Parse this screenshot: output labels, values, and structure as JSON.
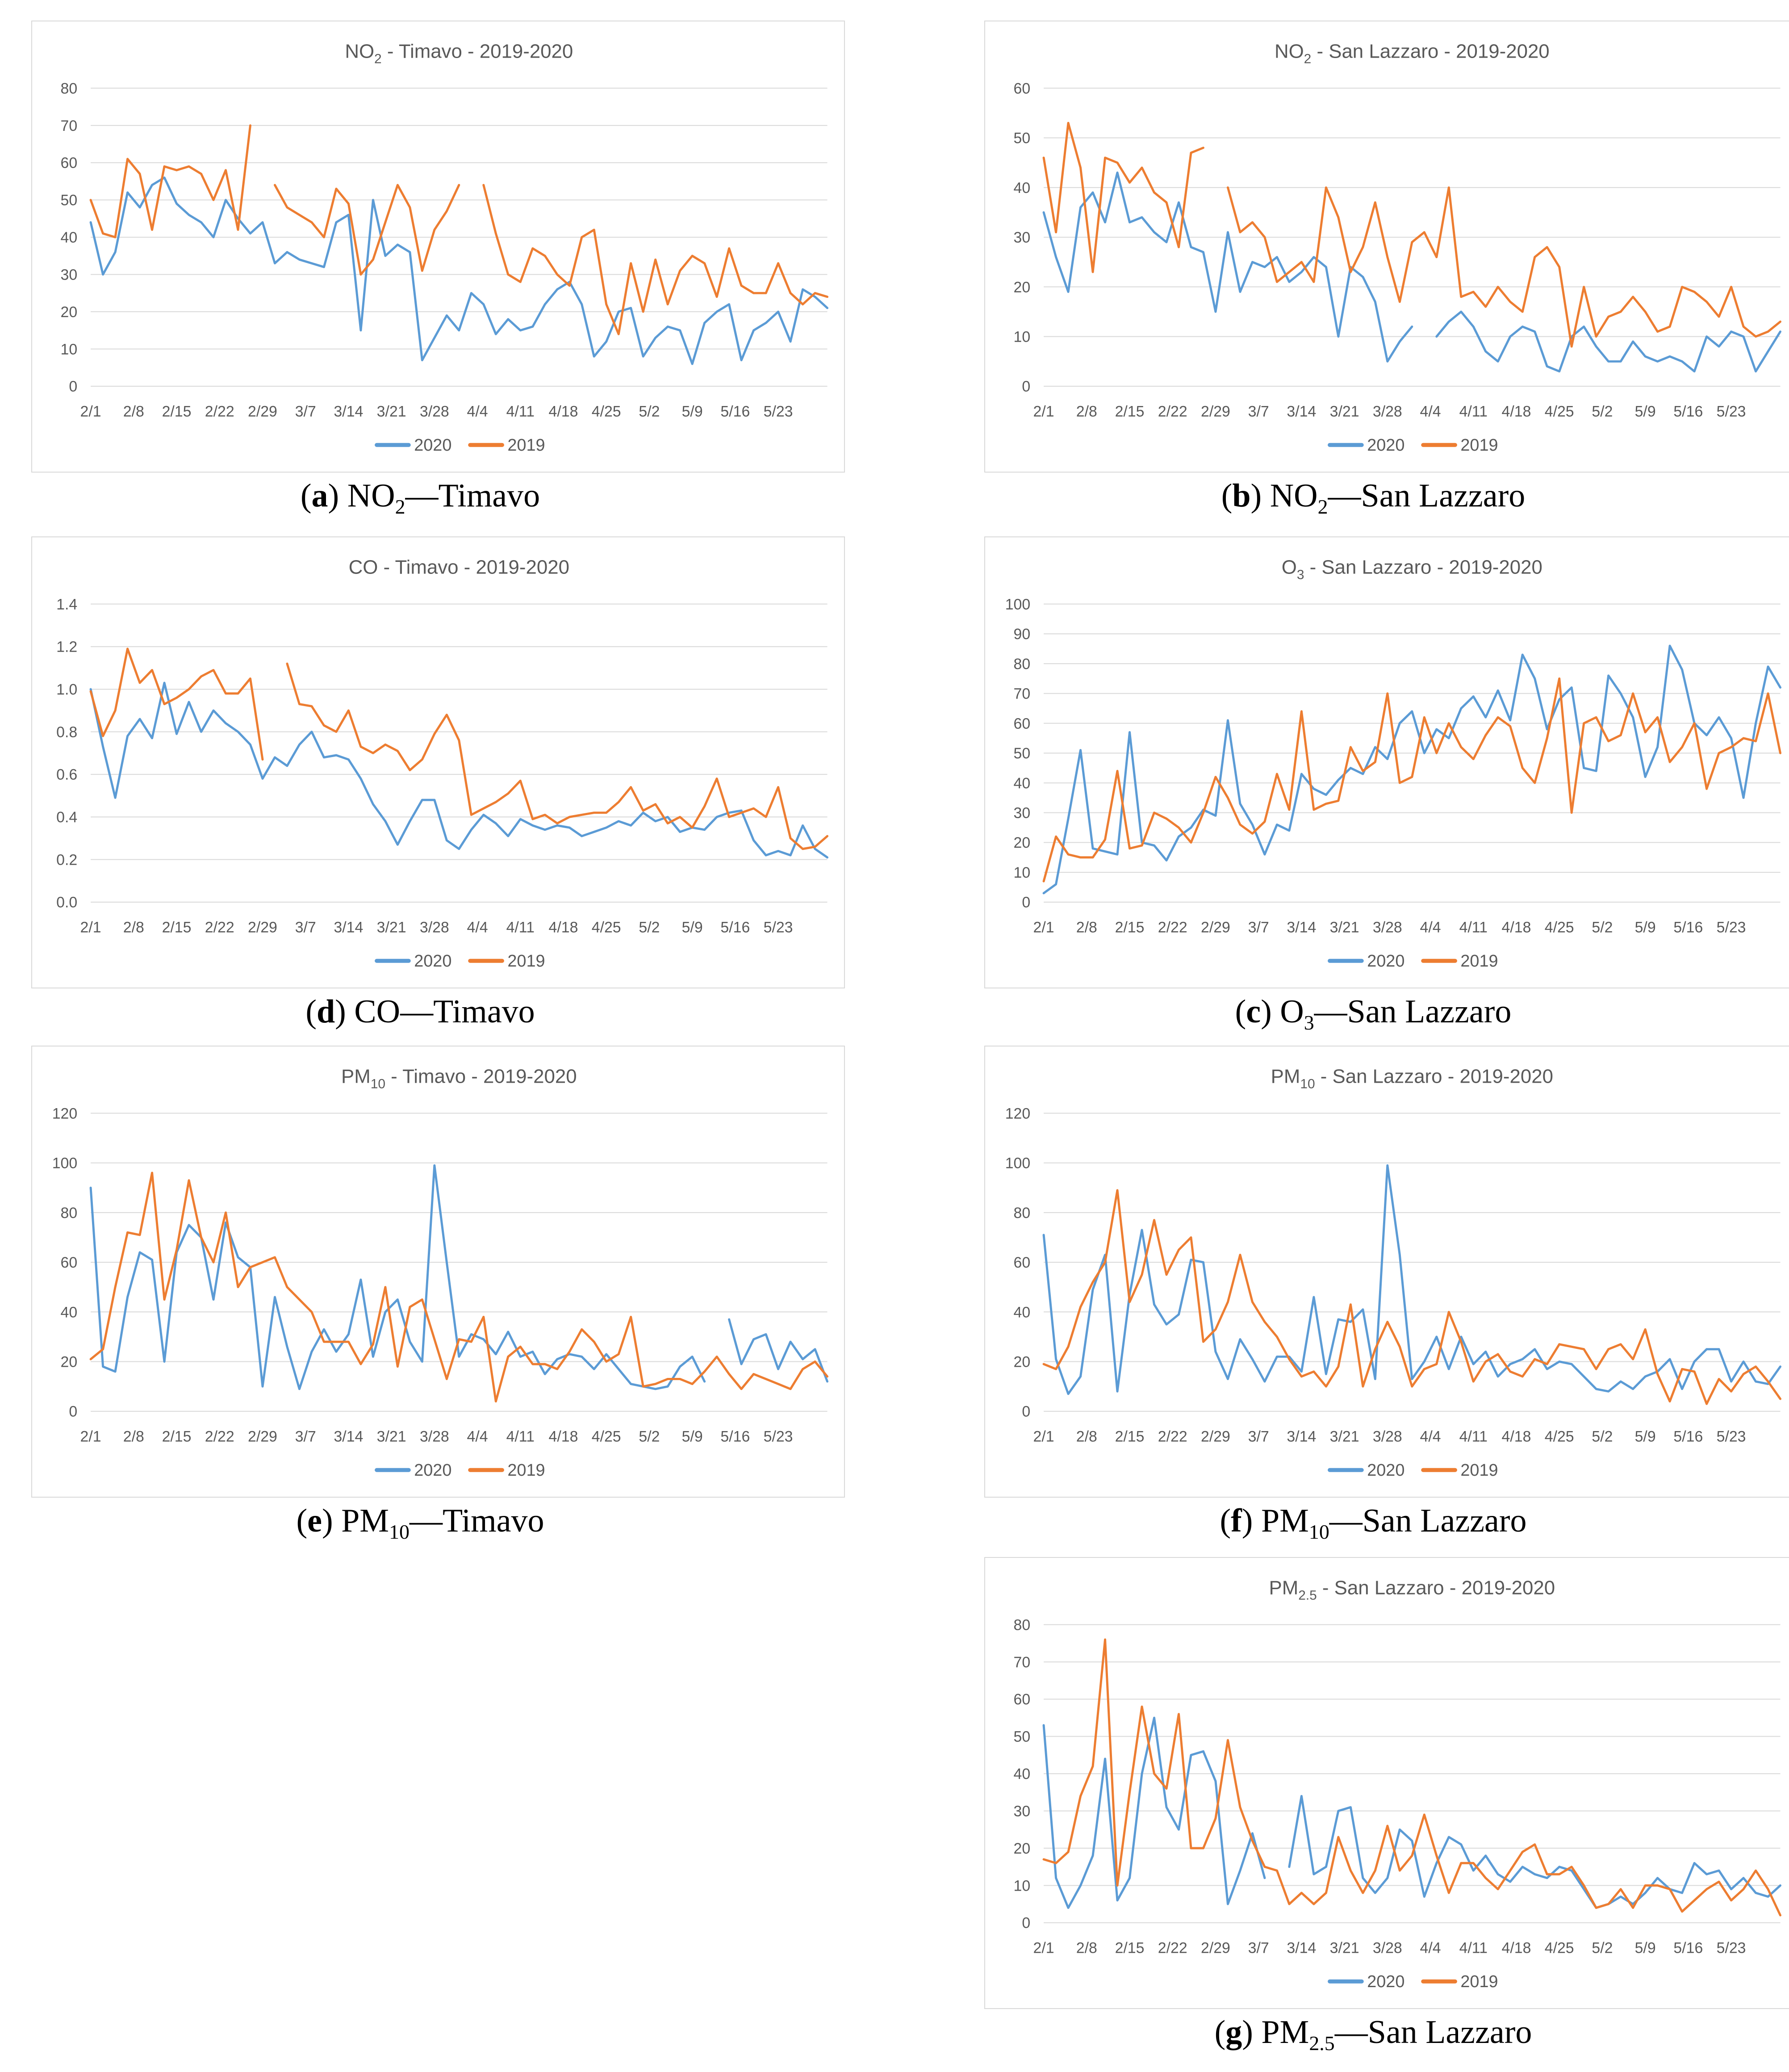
{
  "symbols": {
    "paren_open": "(",
    "paren_close": ") ",
    "dash": "—"
  },
  "colors": {
    "series_2020": "#5B9BD5",
    "series_2019": "#ED7D31",
    "title_text": "#595959",
    "tick_text": "#595959",
    "gridline": "#D9D9D9",
    "panel_border": "#D9D9D9"
  },
  "legend": {
    "labels": [
      "2020",
      "2019"
    ]
  },
  "x_axis": {
    "tick_labels": [
      "2/1",
      "2/8",
      "2/15",
      "2/22",
      "2/29",
      "3/7",
      "3/14",
      "3/21",
      "3/28",
      "4/4",
      "4/11",
      "4/18",
      "4/25",
      "5/2",
      "5/9",
      "5/16",
      "5/23"
    ],
    "tick_step_days": 7,
    "domain_days": 120,
    "start_date": "2/1",
    "end_date": "5/31"
  },
  "sample_step_days": 2,
  "chart_data": [
    {
      "id": "a",
      "type": "line",
      "title": {
        "base": "NO",
        "sub": "2",
        "rest": " - Timavo - 2019-2020"
      },
      "caption": {
        "letter": "a",
        "base": "NO",
        "sub": "2",
        "station": "Timavo"
      },
      "ylim": [
        0,
        80
      ],
      "y_step": 10,
      "y_decimals": 0,
      "grid": true,
      "legend_position": "bottom",
      "series": [
        {
          "name": "2020",
          "values": [
            44,
            30,
            36,
            52,
            48,
            54,
            56,
            49,
            46,
            44,
            40,
            50,
            45,
            41,
            44,
            33,
            36,
            34,
            33,
            32,
            44,
            46,
            15,
            50,
            35,
            38,
            36,
            7,
            13,
            19,
            15,
            25,
            22,
            14,
            18,
            15,
            16,
            22,
            26,
            28,
            22,
            8,
            12,
            20,
            21,
            8,
            13,
            16,
            15,
            6,
            17,
            20,
            22,
            7,
            15,
            17,
            20,
            12,
            26,
            24,
            21
          ]
        },
        {
          "name": "2019",
          "values": [
            50,
            41,
            40,
            61,
            57,
            42,
            59,
            58,
            59,
            57,
            50,
            58,
            42,
            70,
            null,
            54,
            48,
            46,
            44,
            40,
            53,
            49,
            30,
            34,
            44,
            54,
            48,
            31,
            42,
            47,
            54,
            null,
            54,
            41,
            30,
            28,
            37,
            35,
            30,
            27,
            40,
            42,
            22,
            14,
            33,
            20,
            34,
            22,
            31,
            35,
            33,
            24,
            37,
            27,
            25,
            25,
            33,
            25,
            22,
            25,
            24
          ]
        }
      ]
    },
    {
      "id": "b",
      "type": "line",
      "title": {
        "base": "NO",
        "sub": "2",
        "rest": " - San Lazzaro - 2019-2020"
      },
      "caption": {
        "letter": "b",
        "base": "NO",
        "sub": "2",
        "station": "San Lazzaro"
      },
      "ylim": [
        0,
        60
      ],
      "y_step": 10,
      "y_decimals": 0,
      "grid": true,
      "legend_position": "bottom",
      "series": [
        {
          "name": "2020",
          "values": [
            35,
            26,
            19,
            36,
            39,
            33,
            43,
            33,
            34,
            31,
            29,
            37,
            28,
            27,
            15,
            31,
            19,
            25,
            24,
            26,
            21,
            23,
            26,
            24,
            10,
            24,
            22,
            17,
            5,
            9,
            12,
            null,
            10,
            13,
            15,
            12,
            7,
            5,
            10,
            12,
            11,
            4,
            3,
            10,
            12,
            8,
            5,
            5,
            9,
            6,
            5,
            6,
            5,
            3,
            10,
            8,
            11,
            10,
            3,
            7,
            11
          ]
        },
        {
          "name": "2019",
          "values": [
            46,
            31,
            53,
            44,
            23,
            46,
            45,
            41,
            44,
            39,
            37,
            28,
            47,
            48,
            null,
            40,
            31,
            33,
            30,
            21,
            23,
            25,
            21,
            40,
            34,
            23,
            28,
            37,
            26,
            17,
            29,
            31,
            26,
            40,
            18,
            19,
            16,
            20,
            17,
            15,
            26,
            28,
            24,
            8,
            20,
            10,
            14,
            15,
            18,
            15,
            11,
            12,
            20,
            19,
            17,
            14,
            20,
            12,
            10,
            11,
            13
          ]
        }
      ]
    },
    {
      "id": "d",
      "type": "line",
      "title": {
        "base": "CO",
        "sub": "",
        "rest": " - Timavo - 2019-2020"
      },
      "caption": {
        "letter": "d",
        "base": "CO",
        "sub": "",
        "station": "Timavo"
      },
      "ylim": [
        0,
        1.4
      ],
      "y_step": 0.2,
      "y_decimals": 1,
      "grid": true,
      "legend_position": "bottom",
      "series": [
        {
          "name": "2020",
          "values": [
            1.0,
            0.73,
            0.49,
            0.78,
            0.86,
            0.77,
            1.03,
            0.79,
            0.94,
            0.8,
            0.9,
            0.84,
            0.8,
            0.74,
            0.58,
            0.68,
            0.64,
            0.74,
            0.8,
            0.68,
            0.69,
            0.67,
            0.58,
            0.46,
            0.38,
            0.27,
            0.38,
            0.48,
            0.48,
            0.29,
            0.25,
            0.34,
            0.41,
            0.37,
            0.31,
            0.39,
            0.36,
            0.34,
            0.36,
            0.35,
            0.31,
            0.33,
            0.35,
            0.38,
            0.36,
            0.42,
            0.38,
            0.4,
            0.33,
            0.35,
            0.34,
            0.4,
            0.42,
            0.43,
            0.29,
            0.22,
            0.24,
            0.22,
            0.36,
            0.25,
            0.21
          ]
        },
        {
          "name": "2019",
          "values": [
            0.99,
            0.78,
            0.9,
            1.19,
            1.03,
            1.09,
            0.93,
            0.96,
            1.0,
            1.06,
            1.09,
            0.98,
            0.98,
            1.05,
            0.67,
            null,
            1.12,
            0.93,
            0.92,
            0.83,
            0.8,
            0.9,
            0.73,
            0.7,
            0.74,
            0.71,
            0.62,
            0.67,
            0.79,
            0.88,
            0.76,
            0.41,
            0.44,
            0.47,
            0.51,
            0.57,
            0.39,
            0.41,
            0.37,
            0.4,
            0.41,
            0.42,
            0.42,
            0.47,
            0.54,
            0.43,
            0.46,
            0.37,
            0.4,
            0.35,
            0.45,
            0.58,
            0.4,
            0.42,
            0.44,
            0.4,
            0.54,
            0.3,
            0.25,
            0.26,
            0.31
          ]
        }
      ]
    },
    {
      "id": "c",
      "type": "line",
      "title": {
        "base": "O",
        "sub": "3",
        "rest": " - San Lazzaro - 2019-2020"
      },
      "caption": {
        "letter": "c",
        "base": "O",
        "sub": "3",
        "station": "San Lazzaro"
      },
      "ylim": [
        0,
        100
      ],
      "y_step": 10,
      "y_decimals": 0,
      "grid": true,
      "legend_position": "bottom",
      "series": [
        {
          "name": "2020",
          "values": [
            3,
            6,
            28,
            51,
            18,
            17,
            16,
            57,
            20,
            19,
            14,
            22,
            25,
            31,
            29,
            61,
            33,
            26,
            16,
            26,
            24,
            43,
            38,
            36,
            41,
            45,
            43,
            52,
            48,
            60,
            64,
            50,
            58,
            55,
            65,
            69,
            62,
            71,
            61,
            83,
            75,
            58,
            68,
            72,
            45,
            44,
            76,
            70,
            62,
            42,
            52,
            86,
            78,
            60,
            56,
            62,
            55,
            35,
            60,
            79,
            72
          ]
        },
        {
          "name": "2019",
          "values": [
            7,
            22,
            16,
            15,
            15,
            21,
            44,
            18,
            19,
            30,
            28,
            25,
            20,
            30,
            42,
            35,
            26,
            23,
            27,
            43,
            31,
            64,
            31,
            33,
            34,
            52,
            44,
            47,
            70,
            40,
            42,
            62,
            50,
            60,
            52,
            48,
            56,
            62,
            59,
            45,
            40,
            55,
            75,
            30,
            60,
            62,
            54,
            56,
            70,
            57,
            62,
            47,
            52,
            60,
            38,
            50,
            52,
            55,
            54,
            70,
            50
          ]
        }
      ]
    },
    {
      "id": "e",
      "type": "line",
      "title": {
        "base": "PM",
        "sub": "10",
        "rest": " - Timavo - 2019-2020"
      },
      "caption": {
        "letter": "e",
        "base": "PM",
        "sub": "10",
        "station": "Timavo"
      },
      "ylim": [
        0,
        120
      ],
      "y_step": 20,
      "y_decimals": 0,
      "grid": true,
      "legend_position": "bottom",
      "series": [
        {
          "name": "2020",
          "values": [
            90,
            18,
            16,
            46,
            64,
            61,
            20,
            64,
            75,
            70,
            45,
            76,
            62,
            58,
            10,
            46,
            26,
            9,
            24,
            33,
            24,
            31,
            53,
            22,
            40,
            45,
            28,
            20,
            99,
            60,
            22,
            31,
            29,
            23,
            32,
            22,
            24,
            15,
            21,
            23,
            22,
            17,
            23,
            17,
            11,
            10,
            9,
            10,
            18,
            22,
            12,
            null,
            37,
            19,
            29,
            31,
            17,
            28,
            21,
            25,
            12
          ]
        },
        {
          "name": "2019",
          "values": [
            21,
            25,
            50,
            72,
            71,
            96,
            45,
            65,
            93,
            70,
            60,
            80,
            50,
            58,
            60,
            62,
            50,
            45,
            40,
            28,
            28,
            28,
            19,
            27,
            50,
            18,
            42,
            45,
            29,
            13,
            29,
            28,
            38,
            4,
            22,
            26,
            19,
            19,
            17,
            24,
            33,
            28,
            20,
            23,
            38,
            10,
            11,
            13,
            13,
            11,
            16,
            22,
            15,
            9,
            15,
            13,
            11,
            9,
            17,
            20,
            14
          ]
        }
      ]
    },
    {
      "id": "f",
      "type": "line",
      "title": {
        "base": "PM",
        "sub": "10",
        "rest": " - San Lazzaro - 2019-2020"
      },
      "caption": {
        "letter": "f",
        "base": "PM",
        "sub": "10",
        "station": "San Lazzaro"
      },
      "ylim": [
        0,
        120
      ],
      "y_step": 20,
      "y_decimals": 0,
      "grid": true,
      "legend_position": "bottom",
      "series": [
        {
          "name": "2020",
          "values": [
            71,
            21,
            7,
            14,
            49,
            63,
            8,
            47,
            73,
            43,
            35,
            39,
            61,
            60,
            24,
            13,
            29,
            21,
            12,
            22,
            22,
            16,
            46,
            15,
            37,
            36,
            41,
            13,
            99,
            63,
            13,
            20,
            30,
            17,
            30,
            19,
            24,
            14,
            19,
            21,
            25,
            17,
            20,
            19,
            14,
            9,
            8,
            12,
            9,
            14,
            16,
            21,
            9,
            20,
            25,
            25,
            12,
            20,
            12,
            11,
            18
          ]
        },
        {
          "name": "2019",
          "values": [
            19,
            17,
            26,
            42,
            52,
            60,
            89,
            44,
            55,
            77,
            55,
            65,
            70,
            28,
            33,
            44,
            63,
            44,
            36,
            30,
            21,
            14,
            16,
            10,
            18,
            43,
            10,
            25,
            36,
            26,
            10,
            17,
            19,
            40,
            28,
            12,
            20,
            23,
            16,
            14,
            21,
            19,
            27,
            26,
            25,
            17,
            25,
            27,
            21,
            33,
            15,
            4,
            17,
            16,
            3,
            13,
            8,
            15,
            18,
            12,
            5
          ]
        }
      ]
    },
    {
      "id": "g",
      "type": "line",
      "title": {
        "base": "PM",
        "sub": "2.5",
        "rest": " - San Lazzaro - 2019-2020"
      },
      "caption": {
        "letter": "g",
        "base": "PM",
        "sub": "2.5",
        "station": "San Lazzaro"
      },
      "ylim": [
        0,
        80
      ],
      "y_step": 10,
      "y_decimals": 0,
      "grid": true,
      "legend_position": "bottom",
      "series": [
        {
          "name": "2020",
          "values": [
            53,
            12,
            4,
            10,
            18,
            44,
            6,
            12,
            40,
            55,
            31,
            25,
            45,
            46,
            38,
            5,
            14,
            24,
            12,
            null,
            15,
            34,
            13,
            15,
            30,
            31,
            12,
            8,
            12,
            25,
            22,
            7,
            16,
            23,
            21,
            14,
            18,
            13,
            11,
            15,
            13,
            12,
            15,
            14,
            9,
            4,
            5,
            7,
            5,
            8,
            12,
            9,
            8,
            16,
            13,
            14,
            9,
            12,
            8,
            7,
            10
          ]
        },
        {
          "name": "2019",
          "values": [
            17,
            16,
            19,
            34,
            42,
            76,
            10,
            35,
            58,
            40,
            36,
            56,
            20,
            20,
            28,
            49,
            31,
            22,
            15,
            14,
            5,
            8,
            5,
            8,
            23,
            14,
            8,
            14,
            26,
            14,
            18,
            29,
            18,
            8,
            16,
            16,
            12,
            9,
            14,
            19,
            21,
            13,
            13,
            15,
            10,
            4,
            5,
            9,
            4,
            10,
            10,
            9,
            3,
            6,
            9,
            11,
            6,
            9,
            14,
            9,
            2
          ]
        }
      ]
    }
  ]
}
